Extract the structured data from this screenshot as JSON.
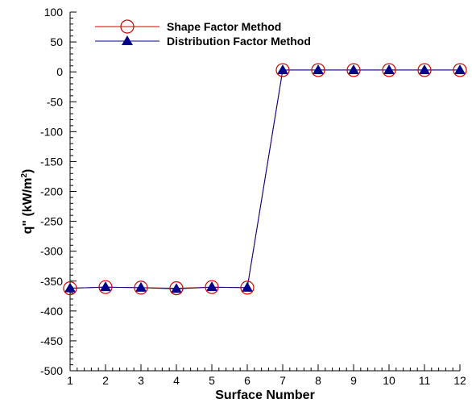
{
  "chart_data": {
    "type": "line",
    "xlabel": "Surface Number",
    "ylabel_main": "q\" (kW/m",
    "ylabel_sup": "2",
    "ylabel_close": ")",
    "xlim": [
      1,
      12
    ],
    "ylim": [
      -500,
      100
    ],
    "x_ticks": [
      1,
      2,
      3,
      4,
      5,
      6,
      7,
      8,
      9,
      10,
      11,
      12
    ],
    "y_ticks": [
      -500,
      -450,
      -400,
      -350,
      -300,
      -250,
      -200,
      -150,
      -100,
      -50,
      0,
      50,
      100
    ],
    "grid": false,
    "legend_position": "top-left",
    "x": [
      1,
      2,
      3,
      4,
      5,
      6,
      7,
      8,
      9,
      10,
      11,
      12
    ],
    "series": [
      {
        "name": "Shape Factor Method",
        "color": "#cc0000",
        "marker": "open-circle",
        "values": [
          -362,
          -360,
          -361,
          -362,
          -360,
          -361,
          3,
          3,
          3,
          3,
          3,
          3
        ]
      },
      {
        "name": "Distribution Factor Method",
        "color": "#00008b",
        "marker": "filled-triangle",
        "values": [
          -362,
          -360,
          -361,
          -363,
          -360,
          -361,
          3,
          3,
          3,
          3,
          3,
          3
        ]
      }
    ]
  }
}
